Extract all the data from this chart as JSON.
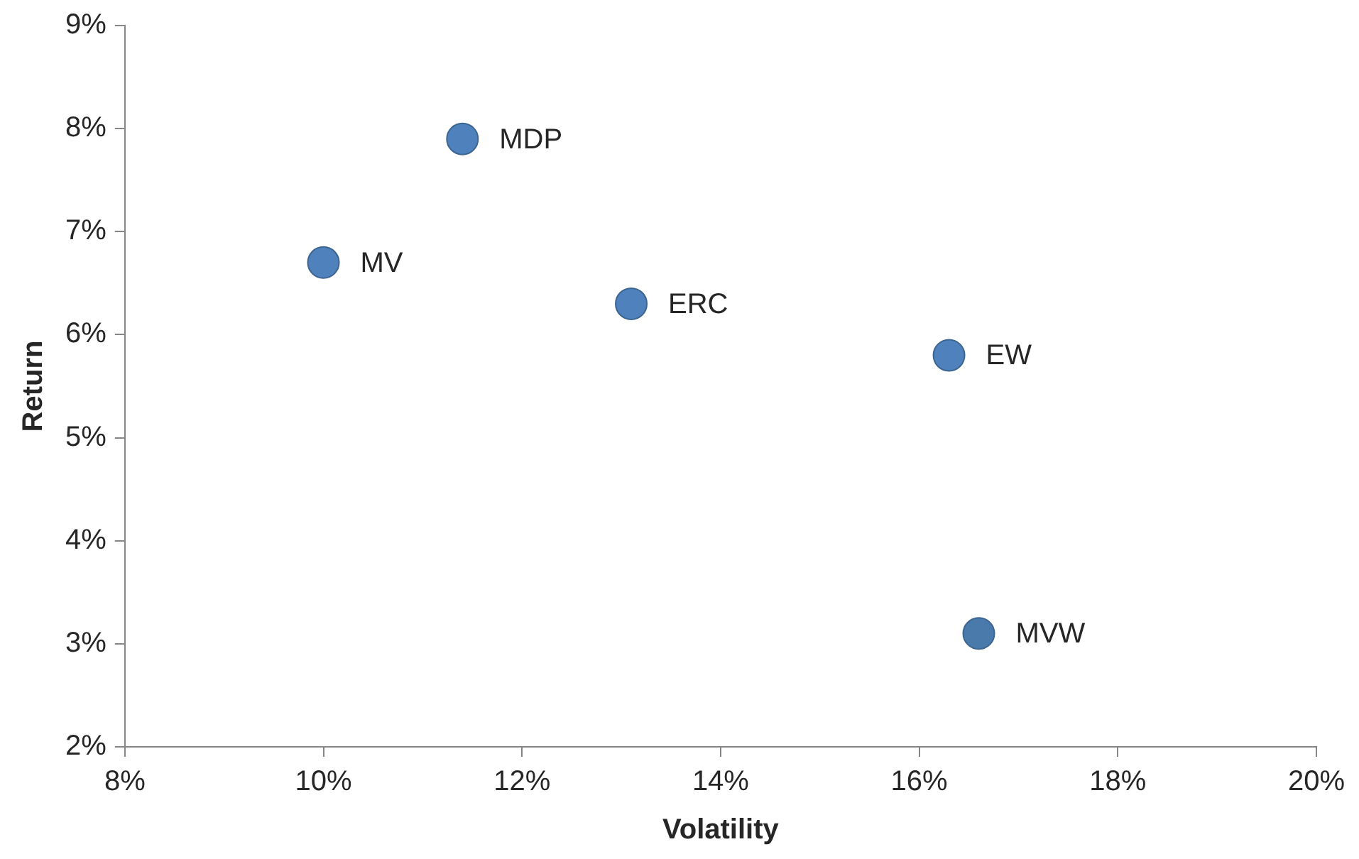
{
  "chart_data": {
    "type": "scatter",
    "xlabel": "Volatility",
    "ylabel": "Return",
    "xlim": [
      8,
      20
    ],
    "xticks": [
      {
        "value": 8,
        "label": "8%"
      },
      {
        "value": 10,
        "label": "10%"
      },
      {
        "value": 12,
        "label": "12%"
      },
      {
        "value": 14,
        "label": "14%"
      },
      {
        "value": 16,
        "label": "16%"
      },
      {
        "value": 18,
        "label": "18%"
      },
      {
        "value": 20,
        "label": "20%"
      }
    ],
    "ylim": [
      2,
      9
    ],
    "yticks": [
      {
        "value": 2,
        "label": "2%"
      },
      {
        "value": 3,
        "label": "3%"
      },
      {
        "value": 4,
        "label": "4%"
      },
      {
        "value": 5,
        "label": "5%"
      },
      {
        "value": 6,
        "label": "6%"
      },
      {
        "value": 7,
        "label": "7%"
      },
      {
        "value": 8,
        "label": "8%"
      },
      {
        "value": 9,
        "label": "9%"
      }
    ],
    "grid": false,
    "legend": false,
    "marker": "circle",
    "series": [
      {
        "name": "MDP",
        "color": "#4f81bd",
        "x": [
          11.4
        ],
        "values": [
          7.9
        ]
      },
      {
        "name": "MV",
        "color": "#4f81bd",
        "x": [
          10.0
        ],
        "values": [
          6.7
        ]
      },
      {
        "name": "ERC",
        "color": "#4f81bd",
        "x": [
          13.1
        ],
        "values": [
          6.3
        ]
      },
      {
        "name": "EW",
        "color": "#4f81bd",
        "x": [
          16.3
        ],
        "values": [
          5.8
        ]
      },
      {
        "name": "MVW",
        "color": "#4a7aab",
        "x": [
          16.6
        ],
        "values": [
          3.1
        ]
      }
    ]
  }
}
